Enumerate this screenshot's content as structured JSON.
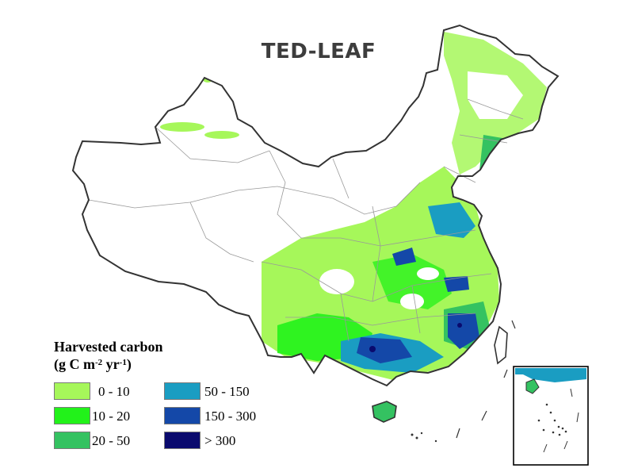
{
  "title": "TED-LEAF",
  "legend": {
    "title": "Harvested carbon",
    "unit_prefix": "(g C m",
    "unit_exp1": "-2",
    "unit_mid": " yr",
    "unit_exp2": "-1",
    "unit_suffix": ")",
    "classes": [
      {
        "label": "0 - 10",
        "color": "#a6f75a"
      },
      {
        "label": "10 - 20",
        "color": "#22f21a"
      },
      {
        "label": "20 - 50",
        "color": "#34c261"
      },
      {
        "label": "50 - 150",
        "color": "#1a9dc2"
      },
      {
        "label": "150 - 300",
        "color": "#1448a8"
      },
      {
        "label": "> 300",
        "color": "#0a0a6e"
      }
    ]
  },
  "colors": {
    "boundary": "#333333",
    "province_line": "#999999"
  }
}
